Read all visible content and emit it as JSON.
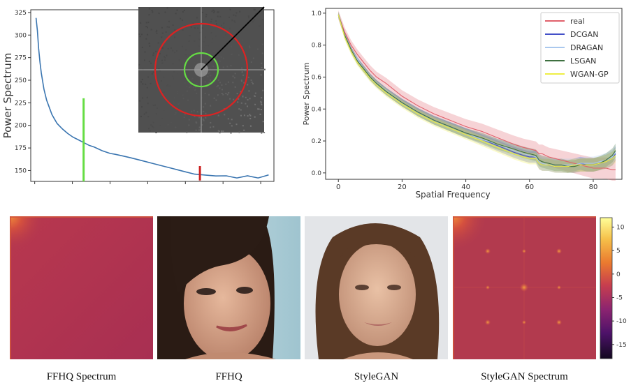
{
  "chart_data": [
    {
      "type": "line",
      "title": "",
      "xlabel": "",
      "ylabel": "Power Spectrum",
      "yticks": [
        "150",
        "175",
        "200",
        "225",
        "250",
        "275",
        "300",
        "325"
      ],
      "ylim": [
        138,
        328
      ],
      "xlim": [
        -2,
        90
      ],
      "x": [
        0,
        0.5,
        1,
        1.5,
        2,
        3,
        4,
        5,
        6,
        7,
        8,
        10,
        12,
        14,
        16,
        18,
        20,
        22,
        25,
        28,
        30,
        33,
        36,
        40,
        44,
        48,
        52,
        56,
        60,
        64,
        68,
        72,
        76,
        80,
        84,
        88
      ],
      "series": [
        {
          "values": [
            319,
            305,
            285,
            270,
            258,
            240,
            228,
            220,
            212,
            207,
            202,
            196,
            191,
            187,
            184,
            181,
            178,
            176,
            172,
            169,
            168,
            166,
            164,
            161,
            158,
            155,
            152,
            149,
            146,
            145,
            144,
            143,
            143,
            143,
            143,
            144
          ],
          "color": "#3a75b0"
        }
      ],
      "markers": [
        {
          "x": 18,
          "ymin": 138,
          "ymax": 230,
          "color": "#66dd44"
        },
        {
          "x": 62,
          "ymin": 139,
          "ymax": 155,
          "color": "#cc2222"
        }
      ],
      "inset": {
        "background": "#505050",
        "circles": [
          "#66dd44",
          "#dd2222"
        ],
        "radius_line": "#000000"
      }
    },
    {
      "type": "line",
      "title": "",
      "xlabel": "Spatial Frequency",
      "ylabel": "Power Spectrum",
      "xticks": [
        "0",
        "20",
        "40",
        "60",
        "80"
      ],
      "yticks": [
        "0.0",
        "0.2",
        "0.4",
        "0.6",
        "0.8",
        "1.0"
      ],
      "xlim": [
        -4,
        89
      ],
      "ylim": [
        -0.04,
        1.03
      ],
      "legend": "top-right",
      "x": [
        0,
        2,
        4,
        6,
        8,
        10,
        12,
        15,
        20,
        25,
        30,
        35,
        40,
        45,
        50,
        55,
        58,
        60,
        62,
        63,
        64,
        66,
        68,
        70,
        72,
        74,
        76,
        78,
        80,
        82,
        84,
        86,
        87
      ],
      "series": [
        {
          "name": "real",
          "color": "#e0606b",
          "values": [
            0.99,
            0.88,
            0.8,
            0.74,
            0.69,
            0.64,
            0.6,
            0.56,
            0.48,
            0.42,
            0.37,
            0.33,
            0.29,
            0.26,
            0.22,
            0.18,
            0.16,
            0.15,
            0.14,
            0.12,
            0.12,
            0.1,
            0.09,
            0.08,
            0.07,
            0.06,
            0.05,
            0.04,
            0.03,
            0.03,
            0.03,
            0.02,
            0.02
          ]
        },
        {
          "name": "DCGAN",
          "color": "#4450c8",
          "values": [
            0.99,
            0.86,
            0.77,
            0.7,
            0.65,
            0.6,
            0.56,
            0.51,
            0.44,
            0.38,
            0.33,
            0.29,
            0.25,
            0.21,
            0.17,
            0.13,
            0.11,
            0.1,
            0.1,
            0.06,
            0.05,
            0.05,
            0.04,
            0.04,
            0.04,
            0.05,
            0.06,
            0.05,
            0.05,
            0.06,
            0.07,
            0.09,
            0.12
          ]
        },
        {
          "name": "DRAGAN",
          "color": "#aac8ee",
          "values": [
            0.99,
            0.86,
            0.77,
            0.71,
            0.65,
            0.6,
            0.56,
            0.51,
            0.44,
            0.38,
            0.33,
            0.29,
            0.25,
            0.21,
            0.18,
            0.14,
            0.12,
            0.11,
            0.1,
            0.07,
            0.06,
            0.05,
            0.05,
            0.05,
            0.05,
            0.05,
            0.06,
            0.06,
            0.06,
            0.07,
            0.08,
            0.1,
            0.13
          ]
        },
        {
          "name": "LSGAN",
          "color": "#3e7040",
          "values": [
            0.99,
            0.86,
            0.77,
            0.7,
            0.65,
            0.6,
            0.56,
            0.51,
            0.44,
            0.38,
            0.33,
            0.29,
            0.25,
            0.22,
            0.18,
            0.15,
            0.13,
            0.12,
            0.11,
            0.08,
            0.07,
            0.06,
            0.05,
            0.05,
            0.04,
            0.04,
            0.05,
            0.05,
            0.05,
            0.06,
            0.08,
            0.11,
            0.14
          ]
        },
        {
          "name": "WGAN-GP",
          "color": "#eeee44",
          "values": [
            0.99,
            0.85,
            0.76,
            0.69,
            0.64,
            0.59,
            0.55,
            0.5,
            0.43,
            0.37,
            0.32,
            0.28,
            0.24,
            0.2,
            0.16,
            0.12,
            0.1,
            0.09,
            0.09,
            0.06,
            0.05,
            0.05,
            0.04,
            0.04,
            0.04,
            0.05,
            0.05,
            0.05,
            0.05,
            0.06,
            0.07,
            0.09,
            0.11
          ]
        }
      ]
    }
  ],
  "colorbar": {
    "ticks": [
      "10",
      "5",
      "0",
      "-5",
      "-10",
      "-15"
    ],
    "range": [
      -18,
      12
    ],
    "colormap": [
      "#ffff99",
      "#f6c14a",
      "#ea7a2f",
      "#c73e4e",
      "#8c2470",
      "#4d1269",
      "#12081f"
    ]
  },
  "panels": [
    {
      "caption": "FFHQ Spectrum",
      "kind": "spectrum",
      "base": "#b0344f"
    },
    {
      "caption": "FFHQ",
      "kind": "face-photo"
    },
    {
      "caption": "StyleGAN",
      "kind": "face-photo"
    },
    {
      "caption": "StyleGAN Spectrum",
      "kind": "spectrum",
      "base": "#b23a4e"
    }
  ]
}
